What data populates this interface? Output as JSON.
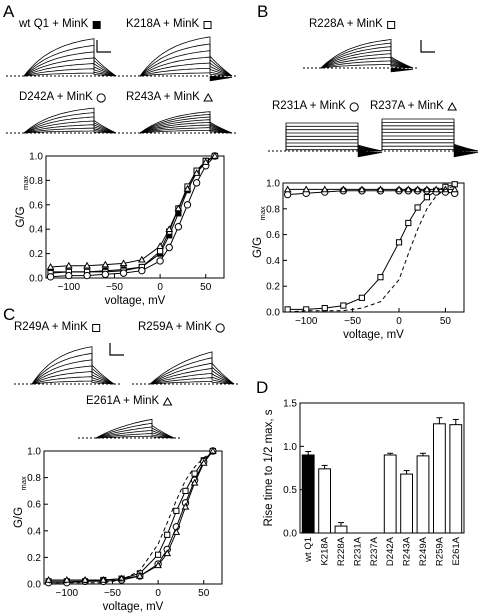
{
  "panels": {
    "A": {
      "letter": "A",
      "traces": [
        {
          "label": "wt Q1 + MinK",
          "marker": "filled-square"
        },
        {
          "label": "K218A + MinK",
          "marker": "open-square"
        },
        {
          "label": "D242A + MinK",
          "marker": "open-circle"
        },
        {
          "label": "R243A + MinK",
          "marker": "open-triangle"
        }
      ]
    },
    "B": {
      "letter": "B",
      "traces": [
        {
          "label": "R228A + MinK",
          "marker": "open-square"
        },
        {
          "label": "R231A + MinK",
          "marker": "open-circle"
        },
        {
          "label": "R237A + MinK",
          "marker": "open-triangle"
        }
      ]
    },
    "C": {
      "letter": "C",
      "traces": [
        {
          "label": "R249A + MinK",
          "marker": "open-square"
        },
        {
          "label": "R259A + MinK",
          "marker": "open-circle"
        },
        {
          "label": "E261A + MinK",
          "marker": "open-triangle"
        }
      ]
    },
    "D": {
      "letter": "D"
    }
  },
  "colors": {
    "ink": "#000000",
    "bar_fill": "#ffffff",
    "wt_bar": "#000000"
  },
  "chart_data": [
    {
      "id": "A",
      "type": "line",
      "xlabel": "voltage, mV",
      "ylabel": "G/G",
      "ylabel_sub": "max",
      "xlim": [
        -125,
        70
      ],
      "ylim": [
        0,
        1.0
      ],
      "xticks": [
        -100,
        -50,
        0,
        50
      ],
      "yticks": [
        0.0,
        0.2,
        0.4,
        0.6,
        0.8,
        1.0
      ],
      "ytick_labels": [
        "0.0",
        "0.2",
        "0.4",
        "0.6",
        "0.8",
        "1.0"
      ],
      "grid": false,
      "x": [
        -120,
        -100,
        -80,
        -60,
        -40,
        -20,
        0,
        10,
        20,
        30,
        40,
        50,
        60
      ],
      "series": [
        {
          "marker": "filled-square",
          "values": [
            0.05,
            0.05,
            0.05,
            0.06,
            0.07,
            0.09,
            0.2,
            0.35,
            0.53,
            0.72,
            0.87,
            0.96,
            1.0
          ]
        },
        {
          "marker": "open-square",
          "values": [
            0.04,
            0.05,
            0.05,
            0.05,
            0.06,
            0.09,
            0.22,
            0.38,
            0.57,
            0.75,
            0.88,
            0.96,
            1.0
          ]
        },
        {
          "marker": "open-circle",
          "values": [
            0.01,
            0.02,
            0.02,
            0.03,
            0.04,
            0.06,
            0.14,
            0.25,
            0.42,
            0.6,
            0.78,
            0.92,
            1.0
          ]
        },
        {
          "marker": "open-triangle",
          "values": [
            0.09,
            0.1,
            0.1,
            0.11,
            0.12,
            0.15,
            0.26,
            0.4,
            0.57,
            0.73,
            0.86,
            0.95,
            1.0
          ]
        }
      ]
    },
    {
      "id": "B",
      "type": "line",
      "xlabel": "voltage, mV",
      "ylabel": "G/G",
      "ylabel_sub": "max",
      "xlim": [
        -125,
        70
      ],
      "ylim": [
        0,
        1.0
      ],
      "xticks": [
        -100,
        -50,
        0,
        50
      ],
      "yticks": [
        0.0,
        0.2,
        0.4,
        0.6,
        0.8,
        1.0
      ],
      "ytick_labels": [
        "0.0",
        "0.2",
        "0.4",
        "0.6",
        "0.8",
        "1.0"
      ],
      "grid": false,
      "x": [
        -120,
        -100,
        -80,
        -60,
        -40,
        -20,
        0,
        10,
        20,
        30,
        40,
        50,
        60
      ],
      "series": [
        {
          "marker": "open-square",
          "values": [
            0.02,
            0.02,
            0.03,
            0.05,
            0.11,
            0.27,
            0.54,
            0.69,
            0.81,
            0.89,
            0.94,
            0.97,
            0.99
          ]
        },
        {
          "marker": "open-circle",
          "values": [
            0.91,
            0.92,
            0.93,
            0.94,
            0.94,
            0.94,
            0.94,
            0.94,
            0.94,
            0.94,
            0.93,
            0.93,
            0.92
          ]
        },
        {
          "marker": "open-triangle",
          "values": [
            0.95,
            0.95,
            0.95,
            0.95,
            0.95,
            0.95,
            0.95,
            0.95,
            0.95,
            0.95,
            0.95,
            0.95,
            0.95
          ]
        },
        {
          "style": "dashed",
          "values": [
            0.0,
            0.01,
            0.01,
            0.01,
            0.03,
            0.08,
            0.25,
            0.45,
            0.64,
            0.8,
            0.9,
            0.95,
            0.98
          ]
        }
      ]
    },
    {
      "id": "C",
      "type": "line",
      "xlabel": "voltage, mV",
      "ylabel": "G/G",
      "ylabel_sub": "max",
      "xlim": [
        -125,
        70
      ],
      "ylim": [
        0,
        1.0
      ],
      "xticks": [
        -100,
        -50,
        0,
        50
      ],
      "yticks": [
        0.0,
        0.2,
        0.4,
        0.6,
        0.8,
        1.0
      ],
      "ytick_labels": [
        "0.0",
        "0.2",
        "0.4",
        "0.6",
        "0.8",
        "1.0"
      ],
      "grid": false,
      "x": [
        -120,
        -100,
        -80,
        -60,
        -40,
        -20,
        0,
        10,
        20,
        30,
        40,
        50,
        60
      ],
      "series": [
        {
          "marker": "open-square",
          "values": [
            0.02,
            0.02,
            0.02,
            0.03,
            0.04,
            0.08,
            0.22,
            0.37,
            0.55,
            0.7,
            0.83,
            0.93,
            1.0
          ]
        },
        {
          "marker": "open-circle",
          "values": [
            0.01,
            0.01,
            0.02,
            0.02,
            0.03,
            0.06,
            0.15,
            0.26,
            0.43,
            0.61,
            0.78,
            0.92,
            1.0
          ]
        },
        {
          "marker": "open-triangle",
          "values": [
            0.03,
            0.03,
            0.03,
            0.03,
            0.04,
            0.06,
            0.14,
            0.23,
            0.39,
            0.58,
            0.76,
            0.91,
            1.0
          ]
        },
        {
          "style": "dashed",
          "values": [
            0.01,
            0.01,
            0.01,
            0.01,
            0.03,
            0.1,
            0.3,
            0.46,
            0.63,
            0.78,
            0.88,
            0.95,
            0.99
          ]
        }
      ]
    },
    {
      "id": "D",
      "type": "bar",
      "ylabel": "Rise time to 1/2 max, s",
      "ylim": [
        0,
        1.5
      ],
      "yticks": [
        0.0,
        0.5,
        1.0,
        1.5
      ],
      "ytick_labels": [
        "0.0",
        "0.5",
        "1.0",
        "1.5"
      ],
      "grid": false,
      "categories": [
        "wt Q1",
        "K218A",
        "R228A",
        "R231A",
        "R237A",
        "D242A",
        "R243A",
        "R249A",
        "R259A",
        "E261A"
      ],
      "values": [
        0.9,
        0.74,
        0.08,
        0,
        0,
        0.9,
        0.68,
        0.89,
        1.26,
        1.25
      ],
      "errors": [
        0.04,
        0.04,
        0.04,
        0,
        0,
        0.02,
        0.04,
        0.03,
        0.07,
        0.06
      ]
    }
  ]
}
